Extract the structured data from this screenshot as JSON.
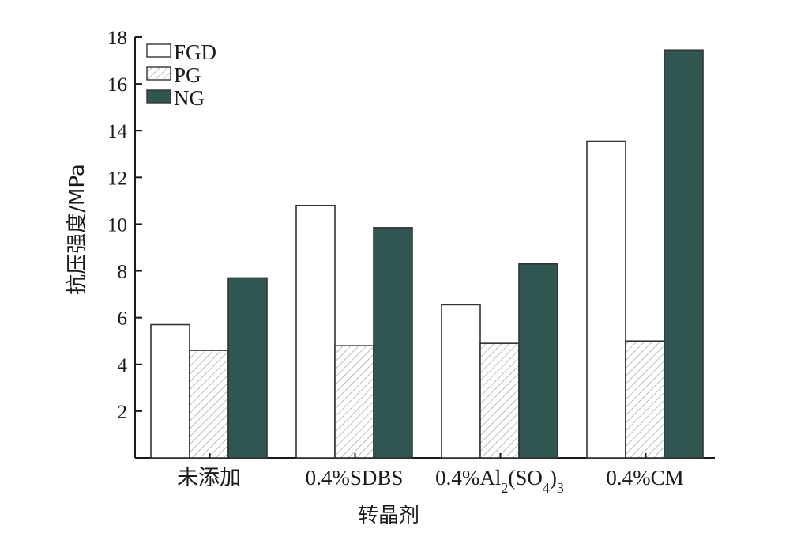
{
  "chart_data": {
    "type": "bar",
    "categories": [
      "未添加",
      "0.4%SDBS",
      "0.4%Al2(SO4)3",
      "0.4%CM"
    ],
    "series": [
      {
        "name": "FGD",
        "values": [
          5.7,
          10.8,
          6.55,
          13.55
        ],
        "color": "#ffffff",
        "pattern": "none"
      },
      {
        "name": "PG",
        "values": [
          4.6,
          4.8,
          4.9,
          5.0
        ],
        "color": "#ffffff",
        "pattern": "hatch"
      },
      {
        "name": "NG",
        "values": [
          7.7,
          9.85,
          8.3,
          17.45
        ],
        "color": "#2f5651",
        "pattern": "none"
      }
    ],
    "xlabel": "转晶剂",
    "ylabel": "抗压强度/MPa",
    "ylim": [
      0,
      18
    ],
    "yticks": [
      2,
      4,
      6,
      8,
      10,
      12,
      14,
      16,
      18
    ],
    "grid": false,
    "legend_position": "top-left"
  }
}
